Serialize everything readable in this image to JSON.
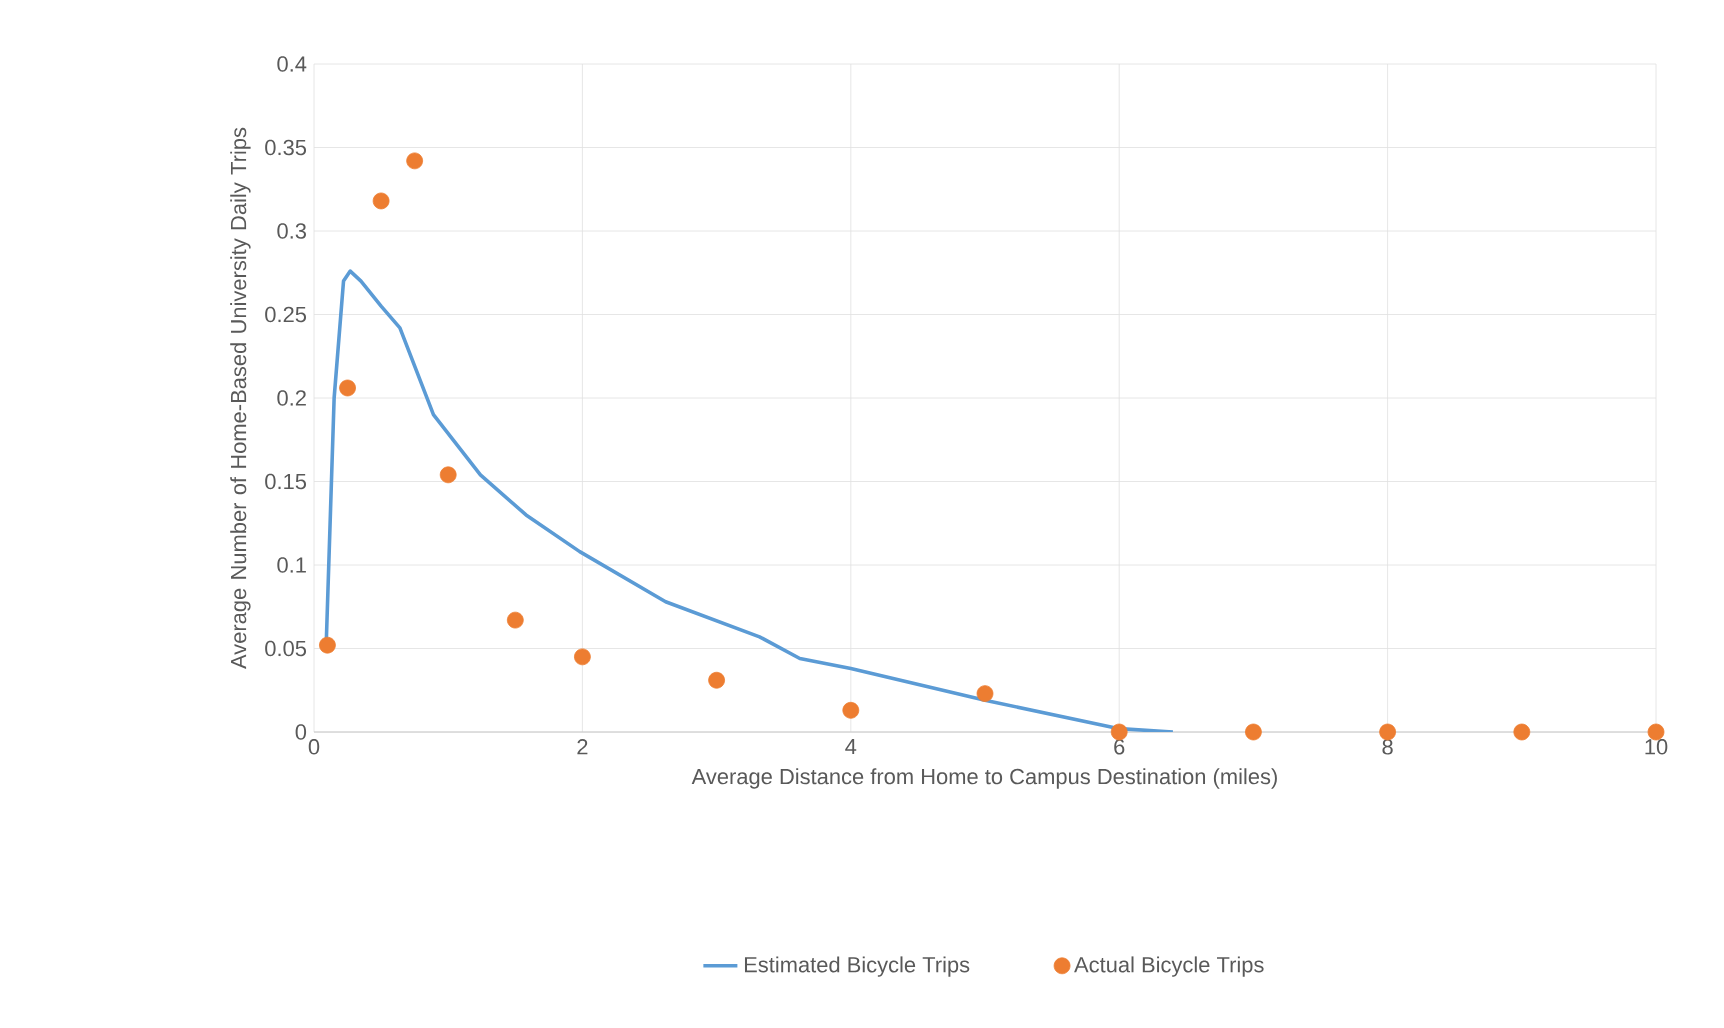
{
  "chart_data": {
    "type": "scatter",
    "xlabel": "Average Distance from Home to Campus Destination (miles)",
    "ylabel": "Average Number of Home-Based University Daily Trips",
    "xlim": [
      0,
      10
    ],
    "ylim": [
      0,
      0.4
    ],
    "xticks": [
      0,
      2,
      4,
      6,
      8,
      10
    ],
    "yticks": [
      0,
      0.05,
      0.1,
      0.15,
      0.2,
      0.25,
      0.3,
      0.35,
      0.4
    ],
    "grid": true,
    "legend": "bottom",
    "series": [
      {
        "name": "Estimated Bicycle Trips",
        "type": "line",
        "marker": "none",
        "color": "#5b9bd5",
        "x": [
          0.09,
          0.15,
          0.22,
          0.27,
          0.35,
          0.5,
          0.64,
          0.89,
          1.24,
          1.58,
          1.98,
          2.62,
          3.32,
          3.62,
          4,
          5,
          6,
          6.4
        ],
        "values": [
          0.05,
          0.2,
          0.27,
          0.276,
          0.27,
          0.255,
          0.242,
          0.19,
          0.154,
          0.13,
          0.108,
          0.078,
          0.057,
          0.044,
          0.038,
          0.019,
          0.002,
          0
        ]
      },
      {
        "name": "Actual Bicycle Trips",
        "type": "scatter",
        "marker": "circle",
        "color": "#ed7d31",
        "x": [
          0.1,
          0.25,
          0.5,
          0.75,
          1,
          1.5,
          2,
          3,
          4,
          5,
          6,
          7,
          8,
          9,
          10
        ],
        "values": [
          0.052,
          0.206,
          0.318,
          0.342,
          0.154,
          0.067,
          0.045,
          0.031,
          0.013,
          0.023,
          0,
          0,
          0,
          0,
          0
        ]
      }
    ]
  }
}
